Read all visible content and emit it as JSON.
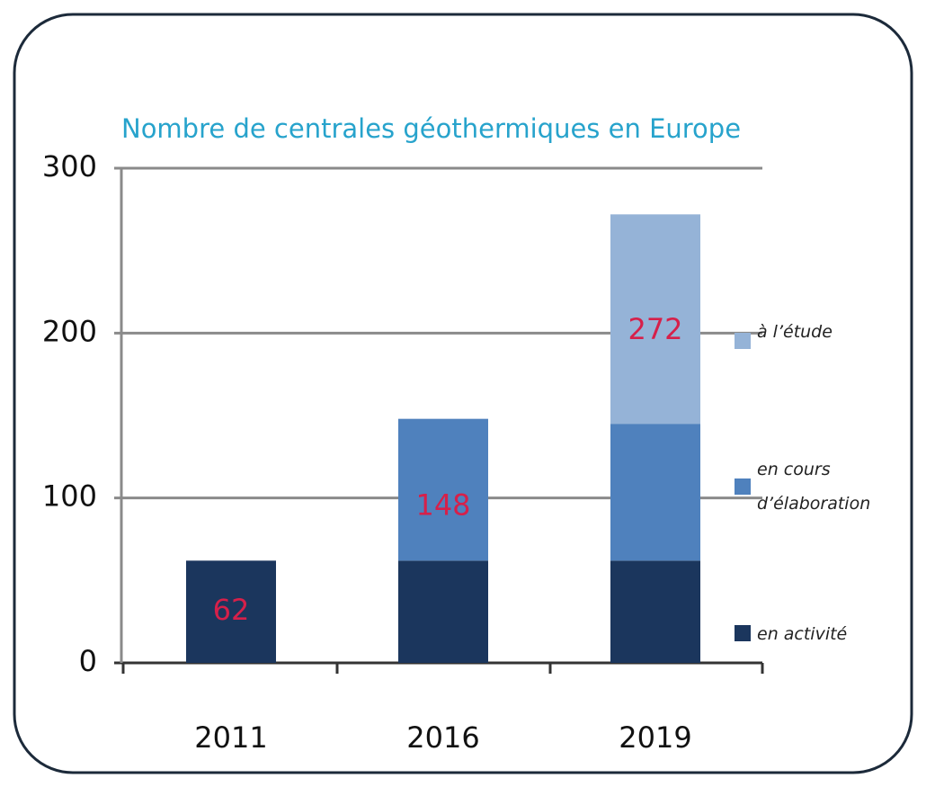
{
  "chart_data": {
    "type": "stacked_bar",
    "title": "Nombre de centrales géothermiques en Europe",
    "categories": [
      "2011",
      "2016",
      "2019"
    ],
    "series": [
      {
        "name": "en activité",
        "color": "#1b365d",
        "values": [
          62,
          62,
          62
        ]
      },
      {
        "name": "en cours d’élaboration",
        "color": "#4f81bd",
        "values": [
          null,
          86,
          83
        ]
      },
      {
        "name": "à l’étude",
        "color": "#95b3d7",
        "values": [
          null,
          null,
          127
        ]
      }
    ],
    "totals": [
      62,
      148,
      272
    ],
    "ylim": [
      0,
      300
    ],
    "yticks": [
      0,
      100,
      200,
      300
    ],
    "grid": true
  }
}
